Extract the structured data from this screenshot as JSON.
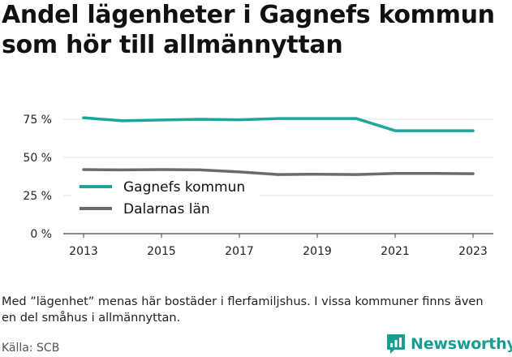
{
  "title": "Andel lägenheter i Gagnefs kommun som hör till allmännyttan",
  "note": "Med ”lägenhet” menas här bostäder i flerfamiljshus. I vissa kommuner finns även en del småhus i allmännyttan.",
  "source": "Källa: SCB",
  "brand": {
    "name": "Newsworthy",
    "icon": "newsworthy-logo-icon",
    "color": "#179d91"
  },
  "chart_data": {
    "type": "line",
    "title": "Andel lägenheter i Gagnefs kommun som hör till allmännyttan",
    "xlabel": "",
    "ylabel": "",
    "x": [
      2013,
      2014,
      2015,
      2016,
      2017,
      2018,
      2019,
      2020,
      2021,
      2022,
      2023
    ],
    "xticks": [
      "2013",
      "2015",
      "2017",
      "2019",
      "2021",
      "2023"
    ],
    "yticks": [
      {
        "value": 0,
        "label": "0 %"
      },
      {
        "value": 25,
        "label": "25 %"
      },
      {
        "value": 50,
        "label": "50 %"
      },
      {
        "value": 75,
        "label": "75 %"
      }
    ],
    "xlim": [
      2013,
      2023
    ],
    "ylim": [
      0,
      75
    ],
    "grid": "horizontal",
    "legend": "middle-left",
    "series": [
      {
        "name": "Gagnefs kommun",
        "color": "#1aa69a",
        "values": [
          76,
          74,
          74.5,
          75,
          74.7,
          75.5,
          75.5,
          75.5,
          67.5,
          67.5,
          67.5
        ]
      },
      {
        "name": "Dalarnas län",
        "color": "#6b6b6b",
        "values": [
          42,
          41.8,
          42,
          41.8,
          40.5,
          38.8,
          39,
          38.8,
          39.5,
          39.5,
          39.3
        ]
      }
    ]
  }
}
